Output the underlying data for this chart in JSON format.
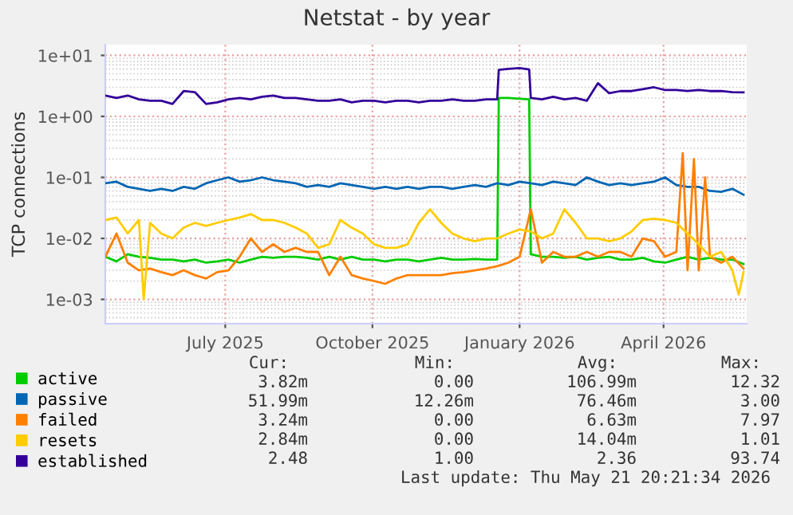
{
  "chart_data": {
    "type": "line",
    "title": "Netstat - by year",
    "ylabel": "TCP connections",
    "log": "y",
    "grid": true,
    "legend": "bottom",
    "marker": "none",
    "line_style": "solid",
    "xlim": [
      "2025-04-17",
      "2026-05-23"
    ],
    "xticks": [
      {
        "value": "2025-07-01",
        "label": "July 2025"
      },
      {
        "value": "2025-10-01",
        "label": "October 2025"
      },
      {
        "value": "2026-01-01",
        "label": "January 2026"
      },
      {
        "value": "2026-04-01",
        "label": "April 2026"
      }
    ],
    "ylim": [
      0.0004,
      15
    ],
    "yticks": [
      {
        "value": 0.001,
        "label": "1e-03"
      },
      {
        "value": 0.01,
        "label": "1e-02"
      },
      {
        "value": 0.1,
        "label": "1e-01"
      },
      {
        "value": 1,
        "label": "1e+00"
      },
      {
        "value": 10,
        "label": "1e+01"
      }
    ],
    "series": [
      {
        "name": "active",
        "color": "#00cc00",
        "x": [
          "2025-04-17",
          "2025-04-24",
          "2025-05-01",
          "2025-05-08",
          "2025-05-15",
          "2025-05-22",
          "2025-05-29",
          "2025-06-05",
          "2025-06-12",
          "2025-06-19",
          "2025-06-26",
          "2025-07-03",
          "2025-07-10",
          "2025-07-17",
          "2025-07-24",
          "2025-07-31",
          "2025-08-07",
          "2025-08-14",
          "2025-08-21",
          "2025-08-28",
          "2025-09-04",
          "2025-09-11",
          "2025-09-18",
          "2025-09-25",
          "2025-10-02",
          "2025-10-09",
          "2025-10-16",
          "2025-10-23",
          "2025-10-30",
          "2025-11-06",
          "2025-11-13",
          "2025-11-20",
          "2025-11-27",
          "2025-12-04",
          "2025-12-11",
          "2025-12-18",
          "2025-12-19",
          "2025-12-25",
          "2026-01-01",
          "2026-01-07",
          "2026-01-08",
          "2026-01-15",
          "2026-01-22",
          "2026-01-29",
          "2026-02-05",
          "2026-02-12",
          "2026-02-19",
          "2026-02-26",
          "2026-03-05",
          "2026-03-12",
          "2026-03-19",
          "2026-03-26",
          "2026-04-02",
          "2026-04-09",
          "2026-04-16",
          "2026-04-23",
          "2026-04-30",
          "2026-05-07",
          "2026-05-14",
          "2026-05-21"
        ],
        "values": [
          0.005,
          0.0042,
          0.0055,
          0.005,
          0.0048,
          0.0045,
          0.0045,
          0.0042,
          0.0045,
          0.004,
          0.0042,
          0.0045,
          0.004,
          0.0045,
          0.005,
          0.0048,
          0.005,
          0.005,
          0.0048,
          0.0045,
          0.005,
          0.0045,
          0.005,
          0.0045,
          0.0045,
          0.0042,
          0.0045,
          0.0045,
          0.0042,
          0.0045,
          0.0048,
          0.0045,
          0.0045,
          0.0046,
          0.0045,
          0.0045,
          2.0,
          2.0,
          1.95,
          1.9,
          0.0055,
          0.005,
          0.005,
          0.0048,
          0.005,
          0.0045,
          0.0048,
          0.005,
          0.0045,
          0.0045,
          0.0048,
          0.0042,
          0.004,
          0.0045,
          0.005,
          0.0045,
          0.0048,
          0.0045,
          0.0045,
          0.0038
        ]
      },
      {
        "name": "passive",
        "color": "#0066b3",
        "x": [
          "2025-04-17",
          "2025-04-24",
          "2025-05-01",
          "2025-05-08",
          "2025-05-15",
          "2025-05-22",
          "2025-05-29",
          "2025-06-05",
          "2025-06-12",
          "2025-06-19",
          "2025-06-26",
          "2025-07-03",
          "2025-07-10",
          "2025-07-17",
          "2025-07-24",
          "2025-07-31",
          "2025-08-07",
          "2025-08-14",
          "2025-08-21",
          "2025-08-28",
          "2025-09-04",
          "2025-09-11",
          "2025-09-18",
          "2025-09-25",
          "2025-10-02",
          "2025-10-09",
          "2025-10-16",
          "2025-10-23",
          "2025-10-30",
          "2025-11-06",
          "2025-11-13",
          "2025-11-20",
          "2025-11-27",
          "2025-12-04",
          "2025-12-11",
          "2025-12-18",
          "2025-12-25",
          "2026-01-01",
          "2026-01-08",
          "2026-01-15",
          "2026-01-22",
          "2026-01-29",
          "2026-02-05",
          "2026-02-12",
          "2026-02-19",
          "2026-02-26",
          "2026-03-05",
          "2026-03-12",
          "2026-03-19",
          "2026-03-26",
          "2026-04-02",
          "2026-04-09",
          "2026-04-16",
          "2026-04-23",
          "2026-04-30",
          "2026-05-07",
          "2026-05-14",
          "2026-05-21"
        ],
        "values": [
          0.08,
          0.085,
          0.07,
          0.065,
          0.06,
          0.065,
          0.06,
          0.07,
          0.065,
          0.08,
          0.09,
          0.1,
          0.085,
          0.09,
          0.1,
          0.09,
          0.085,
          0.08,
          0.07,
          0.075,
          0.07,
          0.08,
          0.075,
          0.07,
          0.065,
          0.07,
          0.065,
          0.07,
          0.065,
          0.07,
          0.07,
          0.065,
          0.07,
          0.075,
          0.07,
          0.08,
          0.075,
          0.085,
          0.08,
          0.075,
          0.085,
          0.08,
          0.075,
          0.1,
          0.085,
          0.075,
          0.08,
          0.075,
          0.08,
          0.085,
          0.1,
          0.075,
          0.07,
          0.07,
          0.06,
          0.058,
          0.065,
          0.052
        ]
      },
      {
        "name": "failed",
        "color": "#ff8000",
        "x": [
          "2025-04-17",
          "2025-04-24",
          "2025-05-01",
          "2025-05-08",
          "2025-05-15",
          "2025-05-22",
          "2025-05-29",
          "2025-06-05",
          "2025-06-12",
          "2025-06-19",
          "2025-06-26",
          "2025-07-03",
          "2025-07-10",
          "2025-07-17",
          "2025-07-24",
          "2025-07-31",
          "2025-08-07",
          "2025-08-14",
          "2025-08-21",
          "2025-08-28",
          "2025-09-04",
          "2025-09-11",
          "2025-09-18",
          "2025-09-25",
          "2025-10-02",
          "2025-10-09",
          "2025-10-16",
          "2025-10-23",
          "2025-10-30",
          "2025-11-06",
          "2025-11-13",
          "2025-11-20",
          "2025-11-27",
          "2025-12-04",
          "2025-12-11",
          "2025-12-18",
          "2025-12-25",
          "2026-01-01",
          "2026-01-08",
          "2026-01-15",
          "2026-01-22",
          "2026-01-29",
          "2026-02-05",
          "2026-02-12",
          "2026-02-19",
          "2026-02-26",
          "2026-03-05",
          "2026-03-12",
          "2026-03-19",
          "2026-03-26",
          "2026-04-02",
          "2026-04-09",
          "2026-04-13",
          "2026-04-16",
          "2026-04-20",
          "2026-04-23",
          "2026-04-27",
          "2026-04-30",
          "2026-05-07",
          "2026-05-14",
          "2026-05-21"
        ],
        "values": [
          0.005,
          0.012,
          0.004,
          0.003,
          0.0032,
          0.0028,
          0.0025,
          0.003,
          0.0025,
          0.0022,
          0.0028,
          0.003,
          0.005,
          0.01,
          0.006,
          0.008,
          0.006,
          0.007,
          0.006,
          0.006,
          0.0025,
          0.005,
          0.0025,
          0.0022,
          0.002,
          0.0018,
          0.0022,
          0.0025,
          0.0025,
          0.0025,
          0.0025,
          0.0027,
          0.0028,
          0.003,
          0.0032,
          0.0035,
          0.004,
          0.005,
          0.03,
          0.004,
          0.006,
          0.005,
          0.005,
          0.006,
          0.005,
          0.006,
          0.006,
          0.005,
          0.01,
          0.009,
          0.005,
          0.006,
          0.25,
          0.003,
          0.2,
          0.003,
          0.1,
          0.005,
          0.004,
          0.005,
          0.0032
        ]
      },
      {
        "name": "resets",
        "color": "#ffcc00",
        "x": [
          "2025-04-17",
          "2025-04-24",
          "2025-05-01",
          "2025-05-08",
          "2025-05-11",
          "2025-05-15",
          "2025-05-22",
          "2025-05-29",
          "2025-06-05",
          "2025-06-12",
          "2025-06-19",
          "2025-06-26",
          "2025-07-03",
          "2025-07-10",
          "2025-07-17",
          "2025-07-24",
          "2025-07-31",
          "2025-08-07",
          "2025-08-14",
          "2025-08-21",
          "2025-08-28",
          "2025-09-04",
          "2025-09-11",
          "2025-09-18",
          "2025-09-25",
          "2025-10-02",
          "2025-10-09",
          "2025-10-16",
          "2025-10-23",
          "2025-10-30",
          "2025-11-06",
          "2025-11-13",
          "2025-11-20",
          "2025-11-27",
          "2025-12-04",
          "2025-12-11",
          "2025-12-18",
          "2025-12-25",
          "2026-01-01",
          "2026-01-08",
          "2026-01-15",
          "2026-01-22",
          "2026-01-29",
          "2026-02-05",
          "2026-02-12",
          "2026-02-19",
          "2026-02-26",
          "2026-03-05",
          "2026-03-12",
          "2026-03-19",
          "2026-03-26",
          "2026-04-02",
          "2026-04-09",
          "2026-04-16",
          "2026-04-23",
          "2026-04-30",
          "2026-05-07",
          "2026-05-14",
          "2026-05-18",
          "2026-05-21"
        ],
        "values": [
          0.02,
          0.022,
          0.012,
          0.02,
          0.001,
          0.018,
          0.012,
          0.01,
          0.015,
          0.018,
          0.016,
          0.018,
          0.02,
          0.022,
          0.025,
          0.02,
          0.02,
          0.018,
          0.015,
          0.012,
          0.007,
          0.008,
          0.02,
          0.015,
          0.012,
          0.008,
          0.007,
          0.007,
          0.008,
          0.018,
          0.03,
          0.018,
          0.012,
          0.01,
          0.009,
          0.01,
          0.01,
          0.012,
          0.014,
          0.013,
          0.01,
          0.012,
          0.03,
          0.018,
          0.01,
          0.01,
          0.009,
          0.01,
          0.013,
          0.02,
          0.021,
          0.02,
          0.018,
          0.012,
          0.008,
          0.005,
          0.006,
          0.003,
          0.0012,
          0.0028
        ]
      },
      {
        "name": "established",
        "color": "#330099",
        "x": [
          "2025-04-17",
          "2025-04-24",
          "2025-05-01",
          "2025-05-08",
          "2025-05-15",
          "2025-05-22",
          "2025-05-29",
          "2025-06-05",
          "2025-06-12",
          "2025-06-19",
          "2025-06-26",
          "2025-07-03",
          "2025-07-10",
          "2025-07-17",
          "2025-07-24",
          "2025-07-31",
          "2025-08-07",
          "2025-08-14",
          "2025-08-21",
          "2025-08-28",
          "2025-09-04",
          "2025-09-11",
          "2025-09-18",
          "2025-09-25",
          "2025-10-02",
          "2025-10-09",
          "2025-10-16",
          "2025-10-23",
          "2025-10-30",
          "2025-11-06",
          "2025-11-13",
          "2025-11-20",
          "2025-11-27",
          "2025-12-04",
          "2025-12-11",
          "2025-12-18",
          "2025-12-19",
          "2025-12-25",
          "2026-01-01",
          "2026-01-07",
          "2026-01-08",
          "2026-01-15",
          "2026-01-22",
          "2026-01-29",
          "2026-02-05",
          "2026-02-12",
          "2026-02-19",
          "2026-02-26",
          "2026-03-05",
          "2026-03-12",
          "2026-03-19",
          "2026-03-26",
          "2026-04-02",
          "2026-04-09",
          "2026-04-16",
          "2026-04-23",
          "2026-04-30",
          "2026-05-07",
          "2026-05-14",
          "2026-05-21"
        ],
        "values": [
          2.2,
          2.0,
          2.2,
          1.9,
          1.8,
          1.8,
          1.6,
          2.6,
          2.5,
          1.6,
          1.7,
          1.9,
          2.0,
          1.9,
          2.1,
          2.2,
          2.0,
          2.0,
          1.9,
          1.8,
          1.8,
          1.9,
          1.7,
          1.8,
          1.8,
          1.7,
          1.8,
          1.8,
          1.7,
          1.8,
          1.8,
          1.9,
          1.8,
          1.8,
          1.9,
          1.9,
          5.8,
          6.0,
          6.2,
          5.9,
          2.0,
          1.9,
          2.1,
          1.9,
          2.0,
          1.8,
          3.5,
          2.4,
          2.6,
          2.6,
          2.8,
          3.0,
          2.7,
          2.7,
          2.6,
          2.7,
          2.6,
          2.6,
          2.5,
          2.48
        ]
      }
    ],
    "annotations": [
      "Cur:",
      "Min:",
      "Avg:",
      "Max:",
      "3.82m",
      "0.00",
      "106.99m",
      "12.32",
      "51.99m",
      "12.26m",
      "76.46m",
      "3.00",
      "3.24m",
      "0.00",
      "6.63m",
      "7.97",
      "2.84m",
      "0.00",
      "14.04m",
      "1.01",
      "2.48",
      "1.00",
      "2.36",
      "93.74",
      "Last update: Thu May 21 20:21:34 2026"
    ]
  }
}
